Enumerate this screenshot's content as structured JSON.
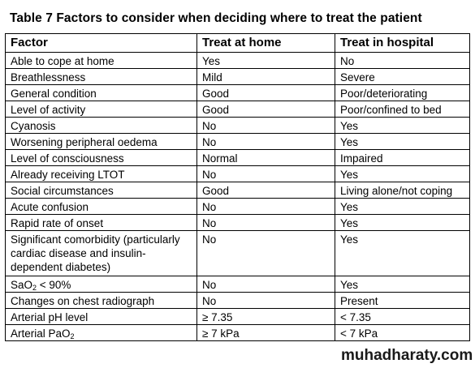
{
  "title": "Table 7 Factors to consider when deciding where to treat the patient",
  "headers": [
    "Factor",
    "Treat at home",
    "Treat in hospital"
  ],
  "rows": [
    {
      "factor": "Able to cope at home",
      "home": "Yes",
      "hospital": "No"
    },
    {
      "factor": "Breathlessness",
      "home": "Mild",
      "hospital": "Severe"
    },
    {
      "factor": "General condition",
      "home": "Good",
      "hospital": "Poor/deteriorating"
    },
    {
      "factor": "Level of activity",
      "home": "Good",
      "hospital": "Poor/confined to bed"
    },
    {
      "factor": "Cyanosis",
      "home": "No",
      "hospital": "Yes"
    },
    {
      "factor": "Worsening peripheral oedema",
      "home": "No",
      "hospital": "Yes"
    },
    {
      "factor": "Level of consciousness",
      "home": "Normal",
      "hospital": "Impaired"
    },
    {
      "factor": "Already receiving LTOT",
      "home": "No",
      "hospital": "Yes"
    },
    {
      "factor": "Social circumstances",
      "home": "Good",
      "hospital": "Living alone/not coping"
    },
    {
      "factor": "Acute confusion",
      "home": "No",
      "hospital": "Yes"
    },
    {
      "factor": "Rapid rate of onset",
      "home": "No",
      "hospital": "Yes"
    },
    {
      "factor": "Significant comorbidity (particularly cardiac disease and insulin-dependent diabetes)",
      "home": "No",
      "hospital": "Yes"
    },
    {
      "factor_main": "SaO",
      "factor_sub": "2",
      "factor_tail": " < 90%",
      "home": "No",
      "hospital": "Yes"
    },
    {
      "factor": "Changes on chest radiograph",
      "home": "No",
      "hospital": "Present"
    },
    {
      "factor": "Arterial pH level",
      "home": "≥ 7.35",
      "hospital": "< 7.35"
    },
    {
      "factor_main": "Arterial PaO",
      "factor_sub": "2",
      "factor_tail": "",
      "home": "≥ 7 kPa",
      "hospital": "< 7 kPa"
    }
  ],
  "watermark": "muhadharaty.com"
}
